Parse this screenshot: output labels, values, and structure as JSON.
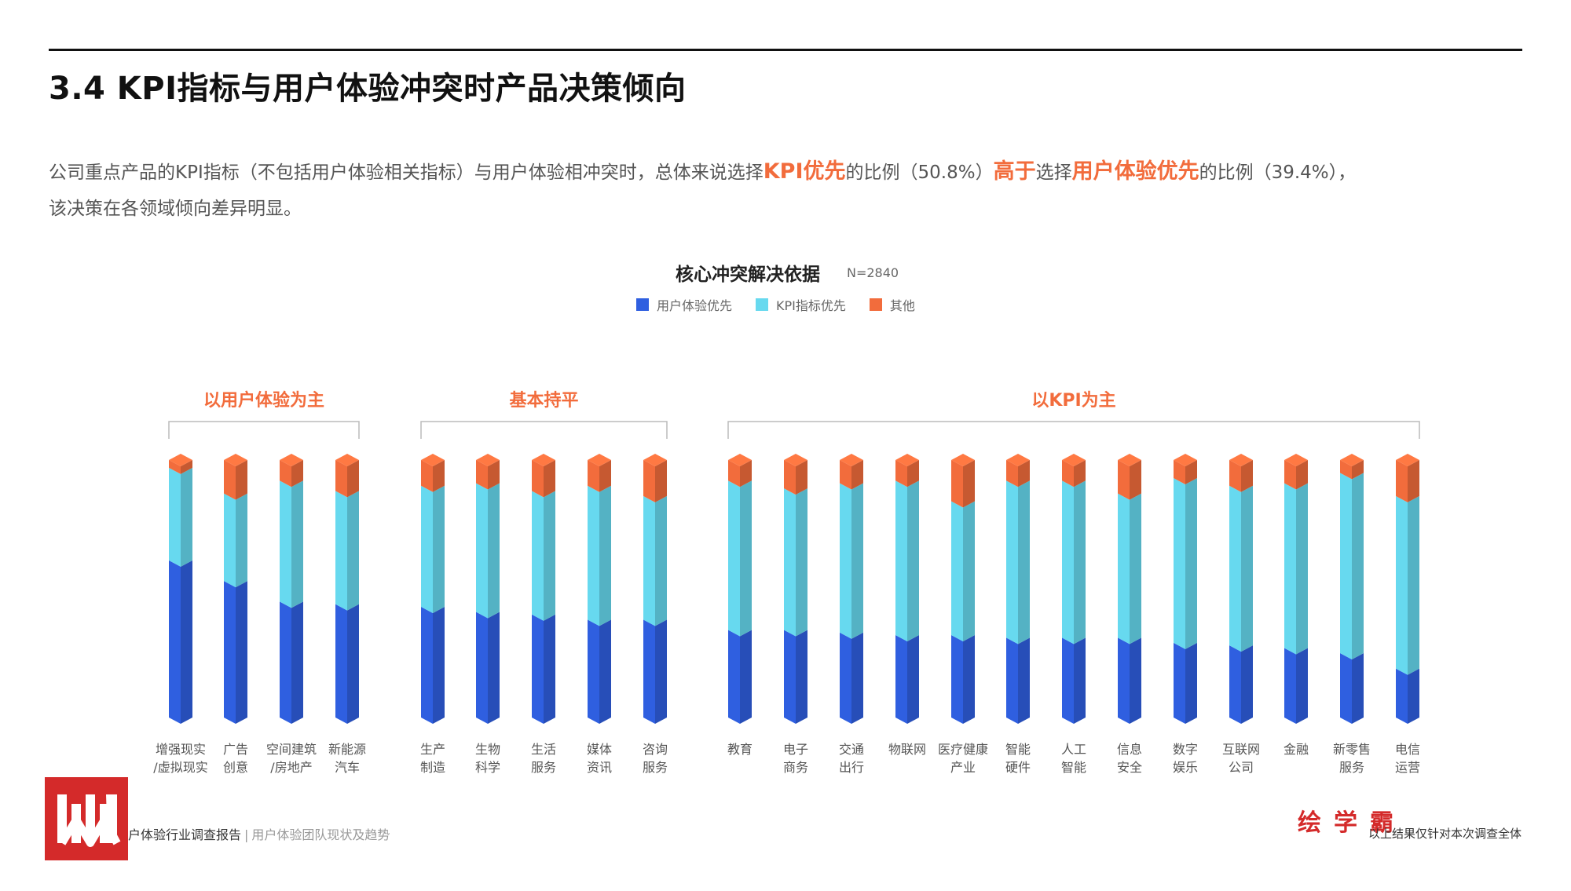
{
  "title": "3.4 KPI指标与用户体验冲突时产品决策倾向",
  "intro": {
    "part1": "公司重点产品的KPI指标（不包括用户体验相关指标）与用户体验相冲突时，总体来说选择",
    "kpi_first": "KPI优先",
    "part2": "的比例（50.8%）",
    "higher": "高于",
    "part3": "选择",
    "ux_first": "用户体验优先",
    "part4": "的比例（39.4%），",
    "line2": "该决策在各领域倾向差异明显。"
  },
  "chart_data": {
    "type": "bar",
    "stacked": true,
    "title": "核心冲突解决依据",
    "sample_size": "N=2840",
    "ylim": [
      0,
      100
    ],
    "legend": [
      "用户体验优先",
      "KPI指标优先",
      "其他"
    ],
    "colors": {
      "ux": "#2f5fe0",
      "kpi": "#67d9ef",
      "other": "#f26c3c"
    },
    "groups": [
      {
        "label": "以用户体验为主",
        "start": 0,
        "end": 3
      },
      {
        "label": "基本持平",
        "start": 4,
        "end": 8
      },
      {
        "label": "以KPI为主",
        "start": 9,
        "end": 21
      }
    ],
    "categories": [
      [
        "增强现实",
        "/虚拟现实"
      ],
      [
        "广告",
        "创意"
      ],
      [
        "空间建筑",
        "/房地产"
      ],
      [
        "新能源",
        "汽车"
      ],
      [
        "生产",
        "制造"
      ],
      [
        "生物",
        "科学"
      ],
      [
        "生活",
        "服务"
      ],
      [
        "媒体",
        "资讯"
      ],
      [
        "咨询",
        "服务"
      ],
      [
        "教育"
      ],
      [
        "电子",
        "商务"
      ],
      [
        "交通",
        "出行"
      ],
      [
        "物联网"
      ],
      [
        "医疗健康",
        "产业"
      ],
      [
        "智能",
        "硬件"
      ],
      [
        "人工",
        "智能"
      ],
      [
        "信息",
        "安全"
      ],
      [
        "数字",
        "娱乐"
      ],
      [
        "互联网",
        "公司"
      ],
      [
        "金融"
      ],
      [
        "新零售",
        "服务"
      ],
      [
        "电信",
        "运营"
      ]
    ],
    "series": [
      {
        "name": "用户体验优先",
        "values": [
          61,
          53,
          45,
          44,
          43,
          41,
          40,
          38,
          38,
          34,
          34,
          33,
          32,
          32,
          31,
          31,
          31,
          29,
          28,
          27,
          25,
          19
        ]
      },
      {
        "name": "KPI指标优先",
        "values": [
          36,
          34,
          47,
          44,
          47,
          50,
          48,
          52,
          48,
          58,
          55,
          58,
          60,
          52,
          61,
          61,
          56,
          64,
          62,
          64,
          70,
          67
        ]
      },
      {
        "name": "其他",
        "values": [
          3,
          13,
          8,
          12,
          10,
          9,
          12,
          10,
          14,
          8,
          11,
          9,
          8,
          16,
          8,
          8,
          13,
          7,
          10,
          9,
          5,
          14
        ]
      }
    ]
  },
  "footer": {
    "report": "户体验行业调查报告",
    "sep": "|",
    "subtitle": "用户体验团队现状及趋势",
    "brand": "绘学霸",
    "note": "以上结果仅针对本次调查全体"
  }
}
